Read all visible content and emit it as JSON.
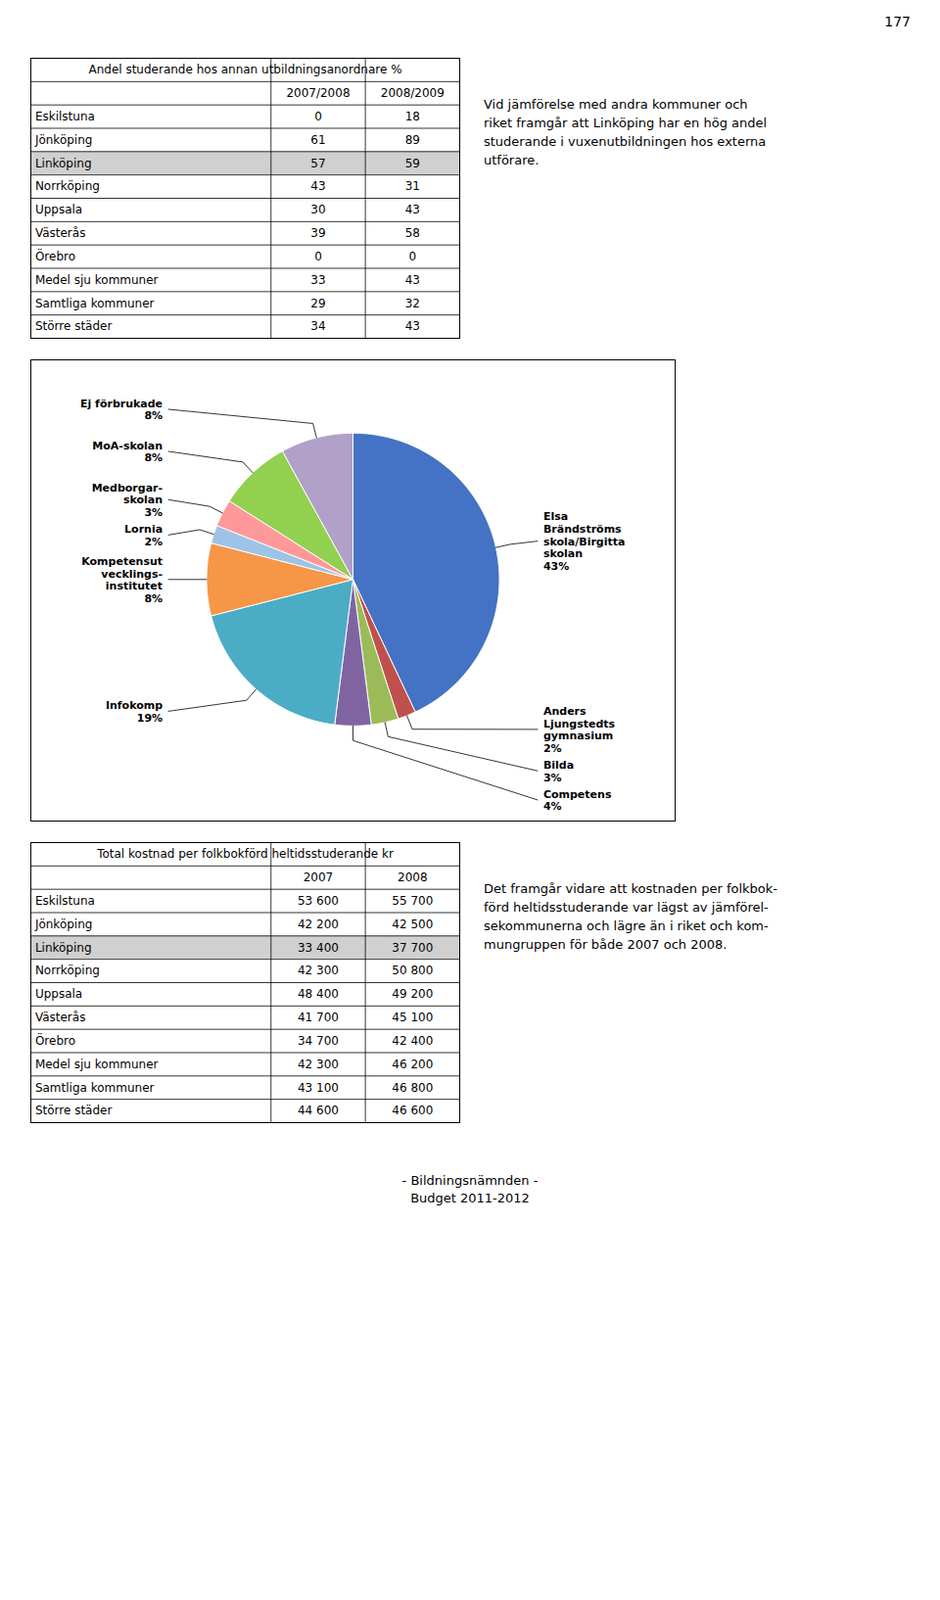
{
  "header": "177",
  "footer": "- Bildningsnämnden -\nBudget 2011-2012",
  "chart_data": [
    {
      "type": "table",
      "title": "Andel studerande hos annan utbildningsanordnare %",
      "categories": [
        "Eskilstuna",
        "Jönköping",
        "Linköping",
        "Norrköping",
        "Uppsala",
        "Västerås",
        "Örebro",
        "Medel sju kommuner",
        "Samtliga kommuner",
        "Större städer"
      ],
      "series": [
        {
          "name": "2007/2008",
          "values": [
            0,
            61,
            57,
            43,
            30,
            39,
            0,
            33,
            29,
            34
          ]
        },
        {
          "name": "2008/2009",
          "values": [
            18,
            89,
            59,
            31,
            43,
            58,
            0,
            43,
            32,
            43
          ]
        }
      ],
      "colors": [
        "#ffffff",
        "#ffffff",
        "#d0d0d0",
        "#ffffff",
        "#ffffff",
        "#ffffff",
        "#ffffff",
        "#ffffff",
        "#ffffff",
        "#ffffff"
      ],
      "annotations": [
        "Vid jämförelse med andra kommuner och\nriket framgår att Linköping har en hög andel\nstuderande i vuxenutbildningen hos externa\nutförare."
      ]
    },
    {
      "type": "pie",
      "categories": [
        "Elsa\nBrändströms\nskola/Birgitta\nskolan",
        "Anders\nLjungstedts\ngymnasium",
        "Bilda",
        "Competens",
        "Infokomp",
        "Kompetensut\nvecklings-\ninstitutet",
        "Lornia",
        "Medborgar-\nskolan",
        "MoA-skolan",
        "Ej förbrukade"
      ],
      "values": [
        43,
        2,
        3,
        4,
        19,
        8,
        2,
        3,
        8,
        8
      ],
      "value_labels": [
        "43%",
        "2%",
        "3%",
        "4%",
        "19%",
        "8%",
        "2%",
        "3%",
        "8%",
        "8%"
      ],
      "colors": [
        "#4472c4",
        "#c0504d",
        "#9bbb59",
        "#8064a2",
        "#4bacc6",
        "#f79646",
        "#9dc3e6",
        "#ff9999",
        "#92d050",
        "#b1a0c7"
      ]
    },
    {
      "type": "table",
      "title": "Total kostnad per folkbokförd heltidsstuderande kr",
      "categories": [
        "Eskilstuna",
        "Jönköping",
        "Linköping",
        "Norrköping",
        "Uppsala",
        "Västerås",
        "Örebro",
        "Medel sju kommuner",
        "Samtliga kommuner",
        "Större städer"
      ],
      "series": [
        {
          "name": "2007",
          "values": [
            53600,
            42200,
            33400,
            42300,
            48400,
            41700,
            34700,
            42300,
            43100,
            44600
          ],
          "value_labels": [
            "53 600",
            "42 200",
            "33 400",
            "42 300",
            "48 400",
            "41 700",
            "34 700",
            "42 300",
            "43 100",
            "44 600"
          ]
        },
        {
          "name": "2008",
          "values": [
            55700,
            42500,
            37700,
            50800,
            49200,
            45100,
            42400,
            46200,
            46800,
            46600
          ],
          "value_labels": [
            "55 700",
            "42 500",
            "37 700",
            "50 800",
            "49 200",
            "45 100",
            "42 400",
            "46 200",
            "46 800",
            "46 600"
          ]
        }
      ],
      "colors": [
        "#ffffff",
        "#ffffff",
        "#d0d0d0",
        "#ffffff",
        "#ffffff",
        "#ffffff",
        "#ffffff",
        "#ffffff",
        "#ffffff",
        "#ffffff"
      ],
      "annotations": [
        "Det framgår vidare att kostnaden per folkbok-\nförd heltidsstuderande var lägst av jämförel-\nsekommunerna och lägre än i riket och kom-\nmungruppen för både 2007 och 2008."
      ]
    }
  ]
}
